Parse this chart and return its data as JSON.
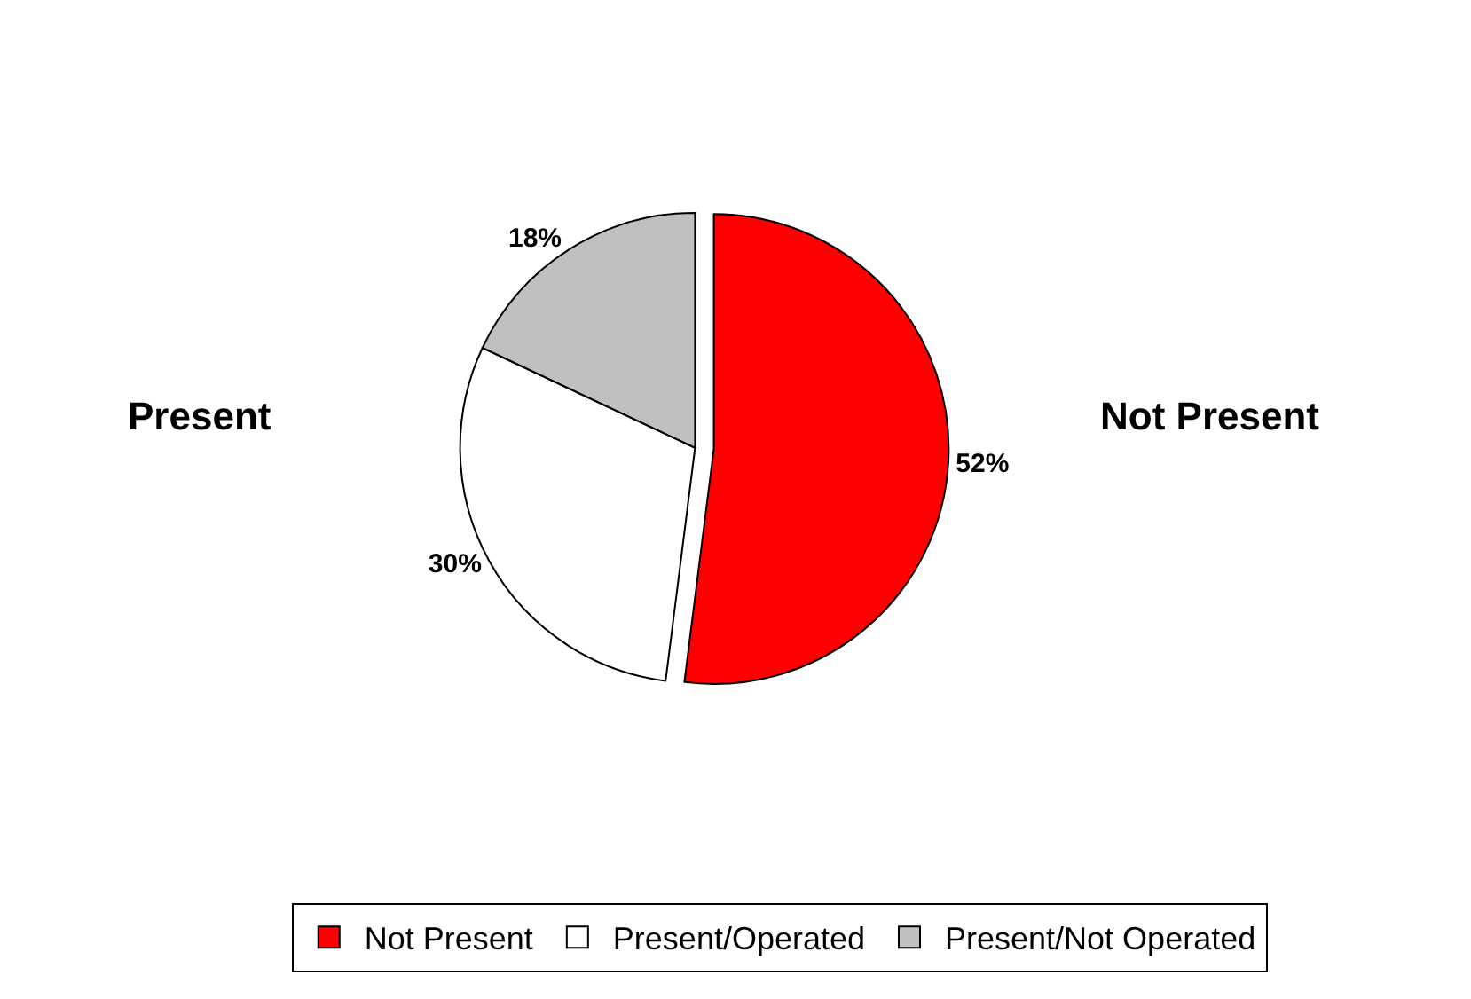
{
  "chart_data": {
    "type": "pie",
    "categories": [
      "Not Present",
      "Present/Operated",
      "Present/Not Operated"
    ],
    "values": [
      52,
      30,
      18
    ],
    "colors": [
      "#ff0000",
      "#ffffff",
      "#c0c0c0"
    ],
    "value_labels": [
      "52%",
      "30%",
      "18%"
    ],
    "annotations": [
      "Not Present",
      "Present"
    ],
    "legend": "bottom"
  }
}
